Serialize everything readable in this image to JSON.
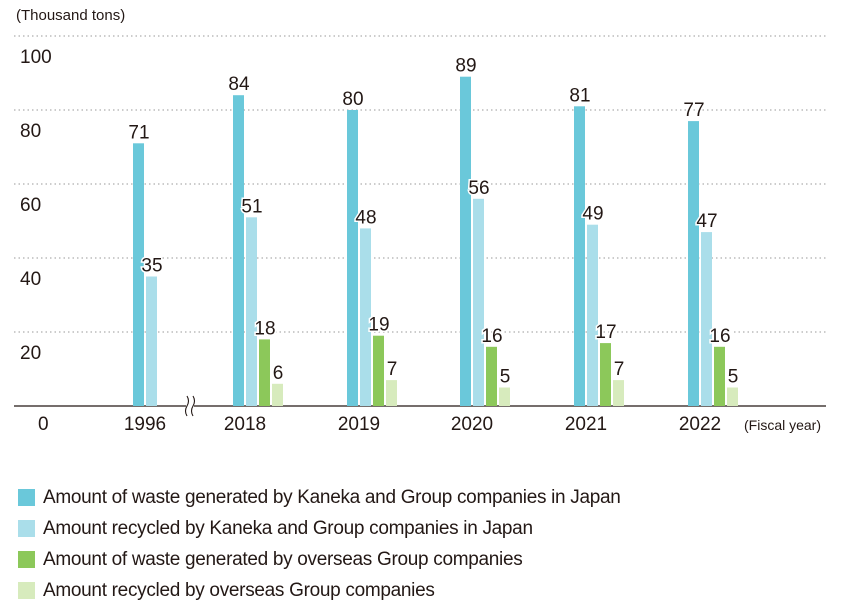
{
  "chart_data": {
    "type": "bar",
    "unit_label": "(Thousand tons)",
    "x_unit_label": "(Fiscal year)",
    "categories": [
      "1996",
      "2018",
      "2019",
      "2020",
      "2021",
      "2022"
    ],
    "y_ticks": [
      "0",
      "20",
      "40",
      "60",
      "80",
      "100"
    ],
    "ylim": [
      0,
      100
    ],
    "grid": "dotted horizontal",
    "axis_break_after": "1996",
    "series": [
      {
        "name": "Amount of waste generated by Kaneka and Group companies in Japan",
        "color": "#6ac8da",
        "values": [
          71,
          84,
          80,
          89,
          81,
          77
        ]
      },
      {
        "name": "Amount recycled by Kaneka and Group companies in Japan",
        "color": "#aadeea",
        "values": [
          35,
          51,
          48,
          56,
          49,
          47
        ]
      },
      {
        "name": "Amount of waste generated by overseas Group companies",
        "color": "#8cc85a",
        "values": [
          null,
          18,
          19,
          16,
          17,
          16
        ]
      },
      {
        "name": "Amount recycled by overseas Group companies",
        "color": "#d7ebbd",
        "values": [
          null,
          6,
          7,
          5,
          7,
          5
        ]
      }
    ]
  }
}
